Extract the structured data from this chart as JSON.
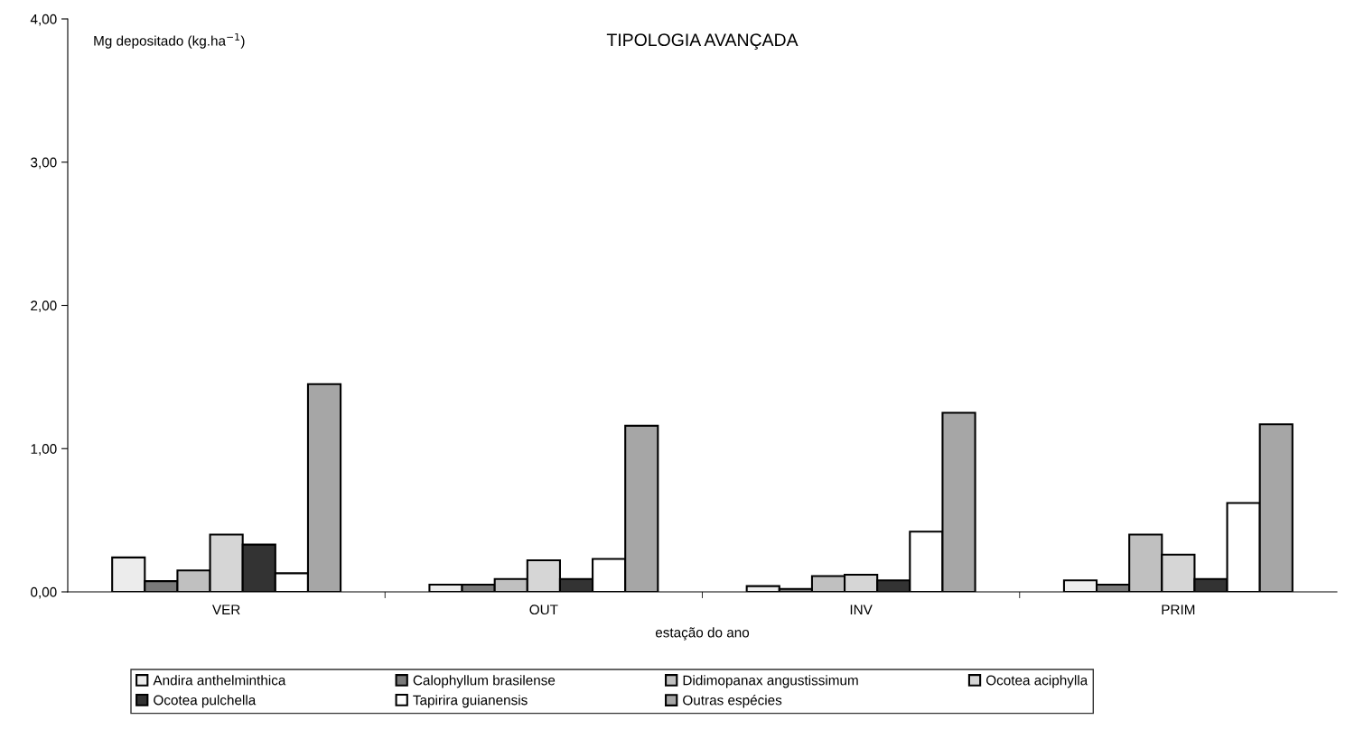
{
  "chart_data": {
    "type": "bar",
    "title": "TIPOLOGIA AVANÇADA",
    "ylabel": "Mg depositado (kg.ha$^{−1}$)",
    "xlabel": "estação do ano",
    "categories": [
      "VER",
      "OUT",
      "INV",
      "PRIM"
    ],
    "series": [
      {
        "name": "Andira anthelminthica",
        "color": "#ececec",
        "values": [
          0.24,
          0.05,
          0.04,
          0.08
        ]
      },
      {
        "name": "Calophyllum brasilense",
        "color": "#7a7a7a",
        "values": [
          0.075,
          0.05,
          0.02,
          0.05
        ]
      },
      {
        "name": "Didimopanax angustissimum",
        "color": "#c0c0c0",
        "values": [
          0.15,
          0.09,
          0.11,
          0.4
        ]
      },
      {
        "name": "Ocotea aciphylla",
        "color": "#d6d6d6",
        "values": [
          0.4,
          0.22,
          0.12,
          0.26
        ]
      },
      {
        "name": "Ocotea pulchella",
        "color": "#333333",
        "values": [
          0.33,
          0.09,
          0.08,
          0.09
        ]
      },
      {
        "name": "Tapirira guianensis",
        "color": "#ffffff",
        "values": [
          0.13,
          0.23,
          0.42,
          0.62
        ]
      },
      {
        "name": "Outras espécies",
        "color": "#a6a6a6",
        "values": [
          1.45,
          1.16,
          1.25,
          1.17
        ]
      }
    ],
    "ylim": [
      0,
      4
    ],
    "yticks": [
      {
        "value": 0,
        "label": "0,00"
      },
      {
        "value": 1,
        "label": "1,00"
      },
      {
        "value": 2,
        "label": "2,00"
      },
      {
        "value": 3,
        "label": "3,00"
      },
      {
        "value": 4,
        "label": "4,00"
      }
    ],
    "legend": "bottom",
    "grid": false
  }
}
